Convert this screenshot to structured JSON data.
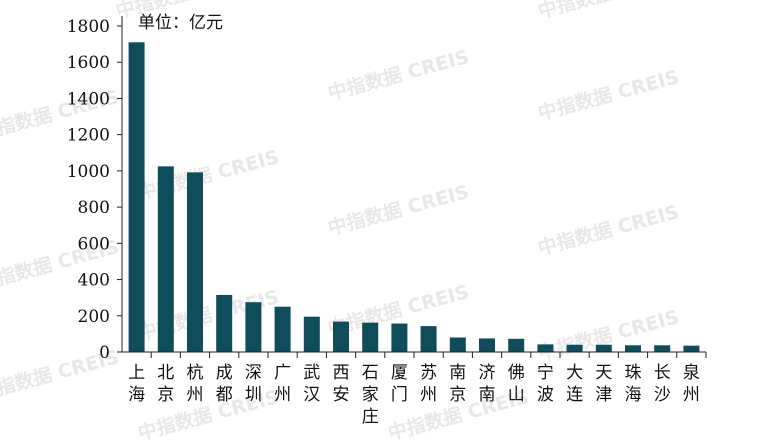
{
  "chart_data": {
    "type": "bar",
    "unit_label": "单位：亿元",
    "watermark": "中指数据 CREIS",
    "color": "#0f4c5c",
    "categories": [
      "上海",
      "北京",
      "杭州",
      "成都",
      "深圳",
      "广州",
      "武汉",
      "西安",
      "石家庄",
      "厦门",
      "苏州",
      "南京",
      "济南",
      "佛山",
      "宁波",
      "大连",
      "天津",
      "珠海",
      "长沙",
      "泉州"
    ],
    "values": [
      1710,
      1025,
      992,
      315,
      275,
      250,
      195,
      168,
      162,
      157,
      143,
      80,
      75,
      73,
      42,
      40,
      40,
      37,
      37,
      35
    ],
    "ylim": [
      0,
      1800
    ],
    "yticks": [
      0,
      200,
      400,
      600,
      800,
      1000,
      1200,
      1400,
      1600,
      1800
    ],
    "grid": false,
    "title": "",
    "xlabel": "",
    "ylabel": ""
  }
}
